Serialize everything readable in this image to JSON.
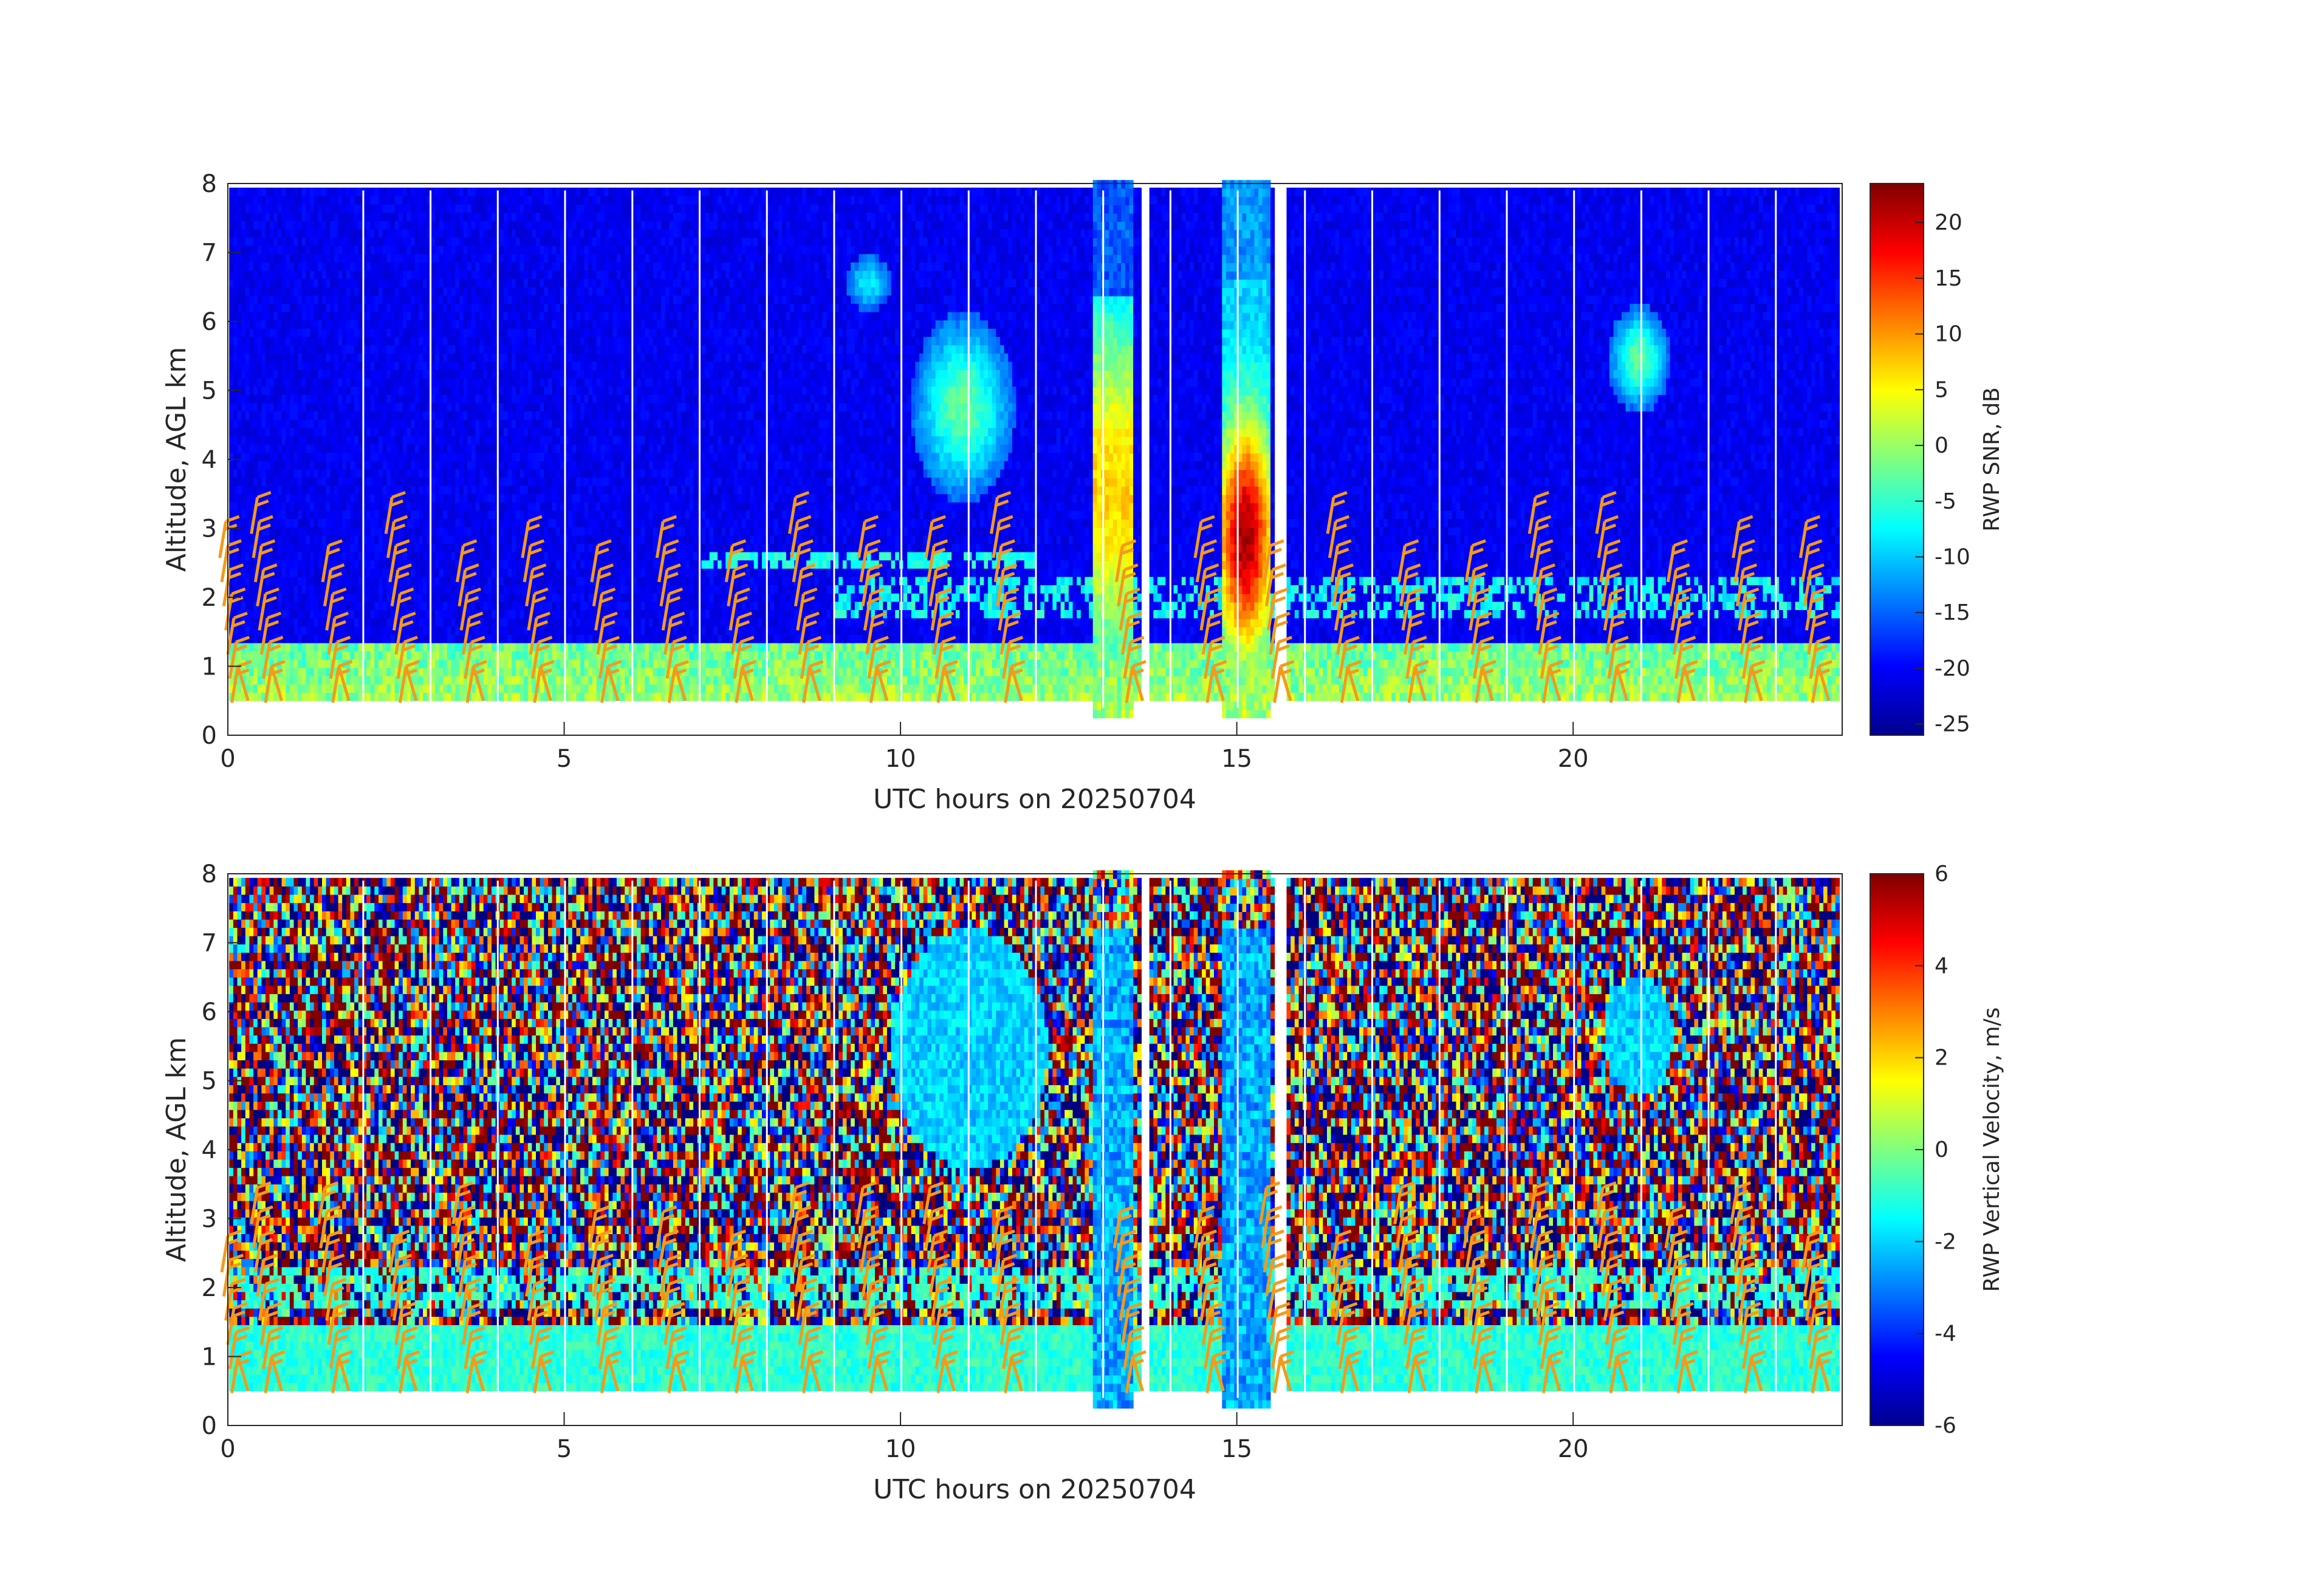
{
  "chart_data": [
    {
      "type": "heatmap",
      "title": "",
      "xlabel": "UTC hours on 20250704",
      "ylabel": "Altitude, AGL km",
      "xlim": [
        0,
        24
      ],
      "ylim": [
        0,
        8
      ],
      "xticks": [
        "0",
        "5",
        "10",
        "15",
        "20"
      ],
      "yticks": [
        "0",
        "1",
        "2",
        "3",
        "4",
        "5",
        "6",
        "7",
        "8"
      ],
      "colorbar": {
        "label": "RWP SNR, dB",
        "range": [
          -26,
          23.5
        ],
        "ticks": [
          "20",
          "15",
          "10",
          "5",
          "0",
          "-5",
          "-10",
          "-15",
          "-20",
          "-25"
        ],
        "colormap": "jet"
      },
      "data_gaps_hours": [
        [
          13.55,
          13.7
        ],
        [
          15.55,
          15.7
        ]
      ],
      "features": [
        {
          "name": "boundary layer",
          "hours": [
            0,
            24
          ],
          "altitude_km": [
            0.5,
            1.3
          ],
          "value_db": -2
        },
        {
          "name": "precipitation",
          "hours": [
            12.9,
            13.4
          ],
          "altitude_km": [
            0.3,
            6.2
          ],
          "value_db": 5
        },
        {
          "name": "precipitation core",
          "hours": [
            14.8,
            15.4
          ],
          "altitude_km": [
            0.3,
            6.5
          ],
          "value_db": 20
        },
        {
          "name": "cloud layer",
          "hours": [
            10.2,
            12
          ],
          "altitude_km": [
            3.5,
            5.8
          ],
          "value_db": -8
        },
        {
          "name": "cloud layer",
          "hours": [
            20.6,
            21.4
          ],
          "altitude_km": [
            4.6,
            6.2
          ],
          "value_db": -10
        }
      ],
      "wind_barb_hours": [
        0,
        0.5,
        1.5,
        2.5,
        3.5,
        4.5,
        5.5,
        6.5,
        7.5,
        8.5,
        9.5,
        10.5,
        11.5,
        13.3,
        14.5,
        15.5,
        16.5,
        17.5,
        18.5,
        19.5,
        20.5,
        21.5,
        22.5,
        23.5
      ]
    },
    {
      "type": "heatmap",
      "title": "",
      "xlabel": "UTC hours on 20250704",
      "ylabel": "Altitude, AGL km",
      "xlim": [
        0,
        24
      ],
      "ylim": [
        0,
        8
      ],
      "xticks": [
        "0",
        "5",
        "10",
        "15",
        "20"
      ],
      "yticks": [
        "0",
        "1",
        "2",
        "3",
        "4",
        "5",
        "6",
        "7",
        "8"
      ],
      "colorbar": {
        "label": "RWP Vertical Velocity, m/s",
        "range": [
          -6,
          6
        ],
        "ticks": [
          "6",
          "4",
          "2",
          "0",
          "-2",
          "-4",
          "-6"
        ],
        "colormap": "jet"
      },
      "data_gaps_hours": [
        [
          13.55,
          13.7
        ],
        [
          15.55,
          15.7
        ]
      ],
      "features": [
        {
          "name": "boundary layer",
          "hours": [
            0,
            24
          ],
          "altitude_km": [
            0.5,
            1.4
          ],
          "value_ms": -1
        },
        {
          "name": "precipitation fall streak",
          "hours": [
            12.9,
            13.4
          ],
          "altitude_km": [
            0.3,
            7.5
          ],
          "value_ms": -3
        },
        {
          "name": "precipitation fall streak",
          "hours": [
            14.8,
            15.4
          ],
          "altitude_km": [
            0.3,
            7.5
          ],
          "value_ms": -3
        },
        {
          "name": "cloud layer",
          "hours": [
            9.8,
            12.3
          ],
          "altitude_km": [
            3.5,
            7.5
          ],
          "value_ms": -2
        },
        {
          "name": "cloud layer",
          "hours": [
            20.5,
            21.6
          ],
          "altitude_km": [
            4.6,
            6.6
          ],
          "value_ms": -2
        }
      ],
      "wind_barb_hours": [
        0,
        0.5,
        1.5,
        2.5,
        3.5,
        4.5,
        5.5,
        6.5,
        7.5,
        8.5,
        9.5,
        10.5,
        11.5,
        13.3,
        14.5,
        15.5,
        16.5,
        17.5,
        18.5,
        19.5,
        20.5,
        21.5,
        22.5,
        23.5
      ]
    }
  ]
}
